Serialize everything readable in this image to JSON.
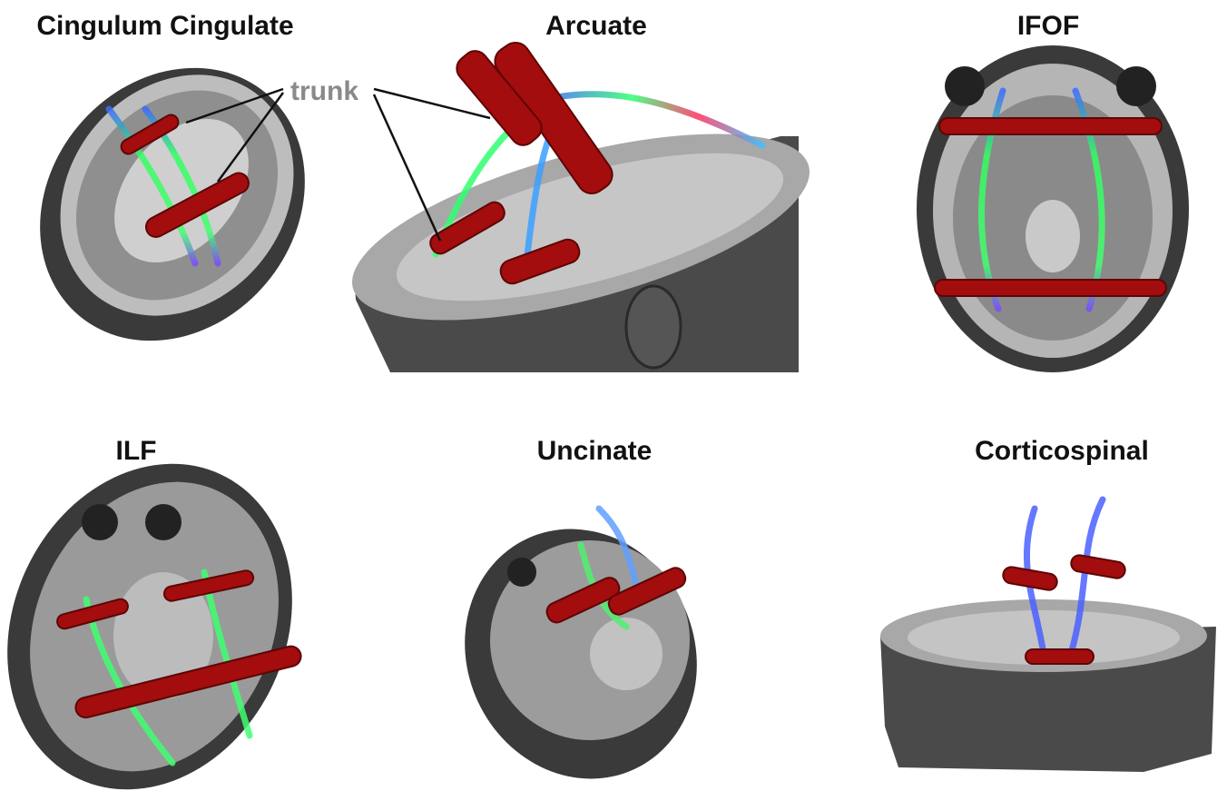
{
  "panels": [
    {
      "title": "Cingulum Cingulate"
    },
    {
      "title": "Arcuate"
    },
    {
      "title": "IFOF"
    },
    {
      "title": "ILF"
    },
    {
      "title": "Uncinate"
    },
    {
      "title": "Corticospinal"
    }
  ],
  "annotation": {
    "label": "trunk"
  }
}
